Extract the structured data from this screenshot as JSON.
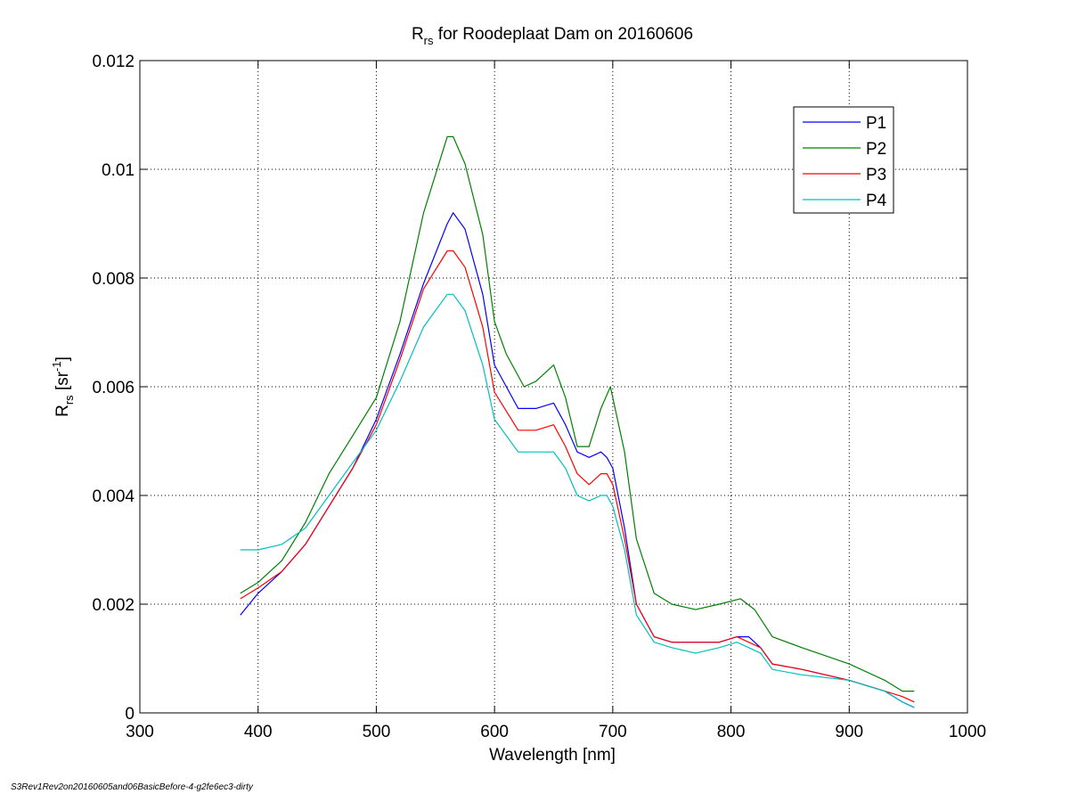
{
  "chart_data": {
    "type": "line",
    "title": {
      "main": "R",
      "sub": "rs",
      "rest": " for Roodeplaat Dam on 20160606"
    },
    "xlabel": "Wavelength [nm]",
    "ylabel": {
      "main": "R",
      "sub": "rs",
      "unit_open": " [sr",
      "unit_sup": "-1",
      "unit_close": "]"
    },
    "xlim": [
      300,
      1000
    ],
    "ylim": [
      0,
      0.012
    ],
    "xticks": [
      300,
      400,
      500,
      600,
      700,
      800,
      900,
      1000
    ],
    "xtick_labels": [
      "300",
      "400",
      "500",
      "600",
      "700",
      "800",
      "900",
      "1000"
    ],
    "yticks": [
      0,
      0.002,
      0.004,
      0.006,
      0.008,
      0.01,
      0.012
    ],
    "ytick_labels": [
      "0",
      "0.002",
      "0.004",
      "0.006",
      "0.008",
      "0.01",
      "0.012"
    ],
    "grid": true,
    "legend_position": "top-right",
    "series": [
      {
        "name": "P1",
        "color": "#0000ff",
        "x": [
          385,
          400,
          420,
          440,
          460,
          480,
          500,
          520,
          540,
          560,
          565,
          575,
          590,
          600,
          620,
          635,
          650,
          660,
          670,
          680,
          690,
          695,
          700,
          710,
          720,
          735,
          750,
          770,
          790,
          805,
          815,
          825,
          835,
          860,
          900,
          930,
          945,
          955
        ],
        "y": [
          0.0018,
          0.0022,
          0.0026,
          0.0031,
          0.0038,
          0.0045,
          0.0054,
          0.0066,
          0.0079,
          0.009,
          0.0092,
          0.0089,
          0.0077,
          0.0064,
          0.0056,
          0.0056,
          0.0057,
          0.0053,
          0.0048,
          0.0047,
          0.0048,
          0.0047,
          0.0045,
          0.0034,
          0.002,
          0.0014,
          0.0013,
          0.0013,
          0.0013,
          0.0014,
          0.0014,
          0.0012,
          0.0009,
          0.0008,
          0.0006,
          0.0004,
          0.0002,
          0.0001
        ]
      },
      {
        "name": "P2",
        "color": "#008000",
        "x": [
          385,
          400,
          420,
          440,
          460,
          480,
          500,
          520,
          540,
          560,
          565,
          575,
          590,
          600,
          610,
          625,
          635,
          650,
          660,
          670,
          680,
          690,
          698,
          710,
          720,
          735,
          750,
          770,
          790,
          808,
          820,
          835,
          860,
          900,
          930,
          945,
          955
        ],
        "y": [
          0.0022,
          0.0024,
          0.0028,
          0.0035,
          0.0044,
          0.0051,
          0.0058,
          0.0072,
          0.0092,
          0.0106,
          0.0106,
          0.0101,
          0.0088,
          0.0072,
          0.0066,
          0.006,
          0.0061,
          0.0064,
          0.0058,
          0.0049,
          0.0049,
          0.0056,
          0.006,
          0.0048,
          0.0032,
          0.0022,
          0.002,
          0.0019,
          0.002,
          0.0021,
          0.0019,
          0.0014,
          0.0012,
          0.0009,
          0.0006,
          0.0004,
          0.0004
        ]
      },
      {
        "name": "P3",
        "color": "#ff0000",
        "x": [
          385,
          400,
          420,
          440,
          460,
          480,
          500,
          520,
          540,
          560,
          565,
          575,
          590,
          600,
          620,
          635,
          650,
          660,
          670,
          680,
          690,
          695,
          700,
          710,
          720,
          735,
          750,
          770,
          790,
          805,
          815,
          825,
          835,
          860,
          900,
          930,
          945,
          955
        ],
        "y": [
          0.0021,
          0.0023,
          0.0026,
          0.0031,
          0.0038,
          0.0045,
          0.0053,
          0.0065,
          0.0078,
          0.0085,
          0.0085,
          0.0082,
          0.0071,
          0.0059,
          0.0052,
          0.0052,
          0.0053,
          0.0049,
          0.0044,
          0.0042,
          0.0044,
          0.0044,
          0.0042,
          0.0032,
          0.002,
          0.0014,
          0.0013,
          0.0013,
          0.0013,
          0.0014,
          0.0013,
          0.0012,
          0.0009,
          0.0008,
          0.0006,
          0.0004,
          0.0003,
          0.0002
        ]
      },
      {
        "name": "P4",
        "color": "#00bfbf",
        "x": [
          385,
          400,
          420,
          440,
          460,
          480,
          500,
          520,
          540,
          560,
          565,
          575,
          590,
          600,
          620,
          635,
          650,
          660,
          670,
          680,
          690,
          695,
          700,
          710,
          720,
          735,
          750,
          770,
          790,
          805,
          815,
          825,
          835,
          860,
          900,
          930,
          945,
          955
        ],
        "y": [
          0.003,
          0.003,
          0.0031,
          0.0034,
          0.004,
          0.0046,
          0.0052,
          0.0061,
          0.0071,
          0.0077,
          0.0077,
          0.0074,
          0.0064,
          0.0054,
          0.0048,
          0.0048,
          0.0048,
          0.0045,
          0.004,
          0.0039,
          0.004,
          0.004,
          0.0038,
          0.003,
          0.0018,
          0.0013,
          0.0012,
          0.0011,
          0.0012,
          0.0013,
          0.0012,
          0.0011,
          0.0008,
          0.0007,
          0.0006,
          0.0004,
          0.0002,
          0.0001
        ]
      }
    ]
  },
  "footer": "S3Rev1Rev2on20160605and06BasicBefore-4-g2fe6ec3-dirty"
}
